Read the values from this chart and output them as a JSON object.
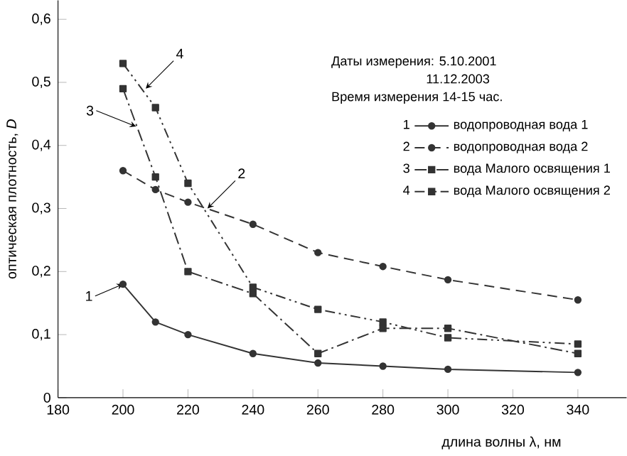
{
  "chart_data": {
    "type": "line",
    "xlabel": "длина волны λ, нм",
    "ylabel": "оптическая плотность, *D*",
    "x": [
      200,
      210,
      220,
      240,
      260,
      280,
      300,
      340
    ],
    "series": [
      {
        "name": "водопроводная вода 1",
        "color": "#333333",
        "line_style": "solid",
        "marker": "circle",
        "values": [
          0.18,
          0.12,
          0.1,
          0.07,
          0.055,
          0.05,
          0.045,
          0.04
        ]
      },
      {
        "name": "водопроводная вода 2",
        "color": "#333333",
        "line_style": "dashed",
        "marker": "circle",
        "values": [
          0.36,
          0.33,
          0.31,
          0.275,
          0.23,
          0.208,
          0.187,
          0.155
        ]
      },
      {
        "name": "вода  Малого освящения 1",
        "color": "#333333",
        "line_style": "dashdot",
        "marker": "square",
        "values": [
          0.49,
          0.35,
          0.2,
          0.165,
          0.07,
          0.11,
          0.11,
          0.07
        ]
      },
      {
        "name": "вода  Малого освящения 2",
        "color": "#333333",
        "line_style": "dashdotdot",
        "marker": "square",
        "values": [
          0.53,
          0.46,
          0.34,
          0.175,
          0.14,
          0.12,
          0.095,
          0.085
        ]
      }
    ],
    "xlim": [
      180,
      355
    ],
    "ylim": [
      0,
      0.63
    ],
    "xticks": [
      180,
      200,
      220,
      240,
      260,
      280,
      300,
      320,
      340
    ],
    "yticks": [
      0,
      {
        "value": 0.1,
        "label": "0,1"
      },
      {
        "value": 0.2,
        "label": "0,2"
      },
      {
        "value": 0.3,
        "label": "0,3"
      },
      {
        "value": 0.4,
        "label": "0,4"
      },
      {
        "value": 0.5,
        "label": "0,5"
      },
      {
        "value": 0.6,
        "label": "0,6"
      }
    ],
    "legend": "top right",
    "grid": false,
    "annotations": [
      {
        "text": "1",
        "x": 200,
        "y": 0.18
      },
      {
        "text": "2",
        "x": 226,
        "y": 0.3
      },
      {
        "text": "3",
        "x": 204,
        "y": 0.43
      },
      {
        "text": "4",
        "x": 207,
        "y": 0.49
      },
      "Даты измерения:  5.10.2001",
      "11.12.2003",
      "Время измерения 14-15 час."
    ]
  }
}
